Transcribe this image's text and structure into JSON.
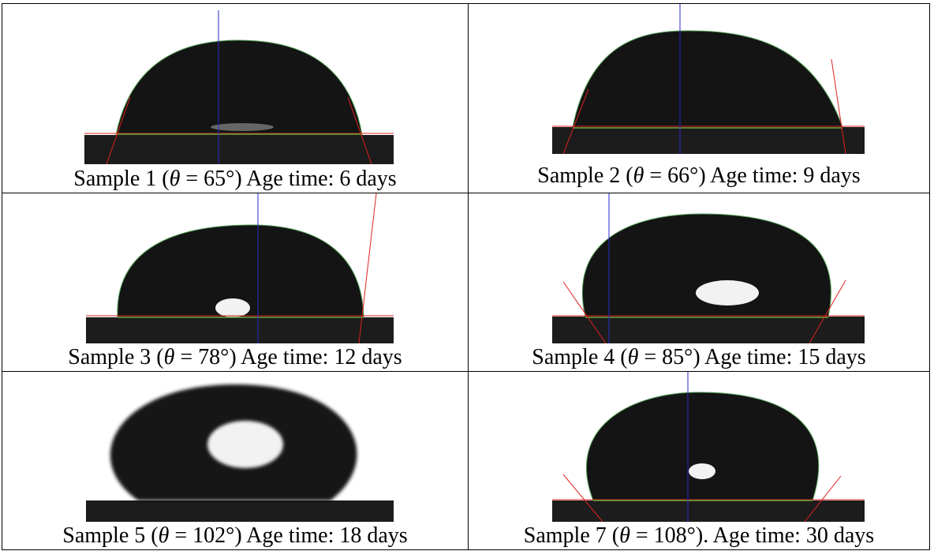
{
  "figure": {
    "cells": [
      {
        "sample": "Sample 1",
        "theta_symbol": "θ",
        "angle": "65°",
        "sep": ")",
        "age_label": "Age time:",
        "age": "6 days"
      },
      {
        "sample": "Sample 2",
        "theta_symbol": "θ",
        "angle": "66°",
        "sep": ")",
        "age_label": "Age time:",
        "age": "9 days"
      },
      {
        "sample": "Sample 3",
        "theta_symbol": "θ",
        "angle": "78°",
        "sep": ")",
        "age_label": "Age time:",
        "age": "12 days"
      },
      {
        "sample": "Sample 4",
        "theta_symbol": "θ",
        "angle": "85°",
        "sep": ")",
        "age_label": "Age time:",
        "age": "15 days"
      },
      {
        "sample": "Sample 5",
        "theta_symbol": "θ",
        "angle": "102°",
        "sep": ")",
        "age_label": "Age time:",
        "age": "18 days"
      },
      {
        "sample": "Sample 7",
        "theta_symbol": "θ",
        "angle": "108°",
        "sep": ").",
        "age_label": "Age time:",
        "age": "30 days"
      }
    ],
    "colors": {
      "droplet": "#141414",
      "substrate": "#1c1c1c",
      "baseline": "#6fa83a",
      "tangent": "#e02020",
      "axis": "#2a2ad0",
      "reflection": "#f2f2f2"
    }
  }
}
